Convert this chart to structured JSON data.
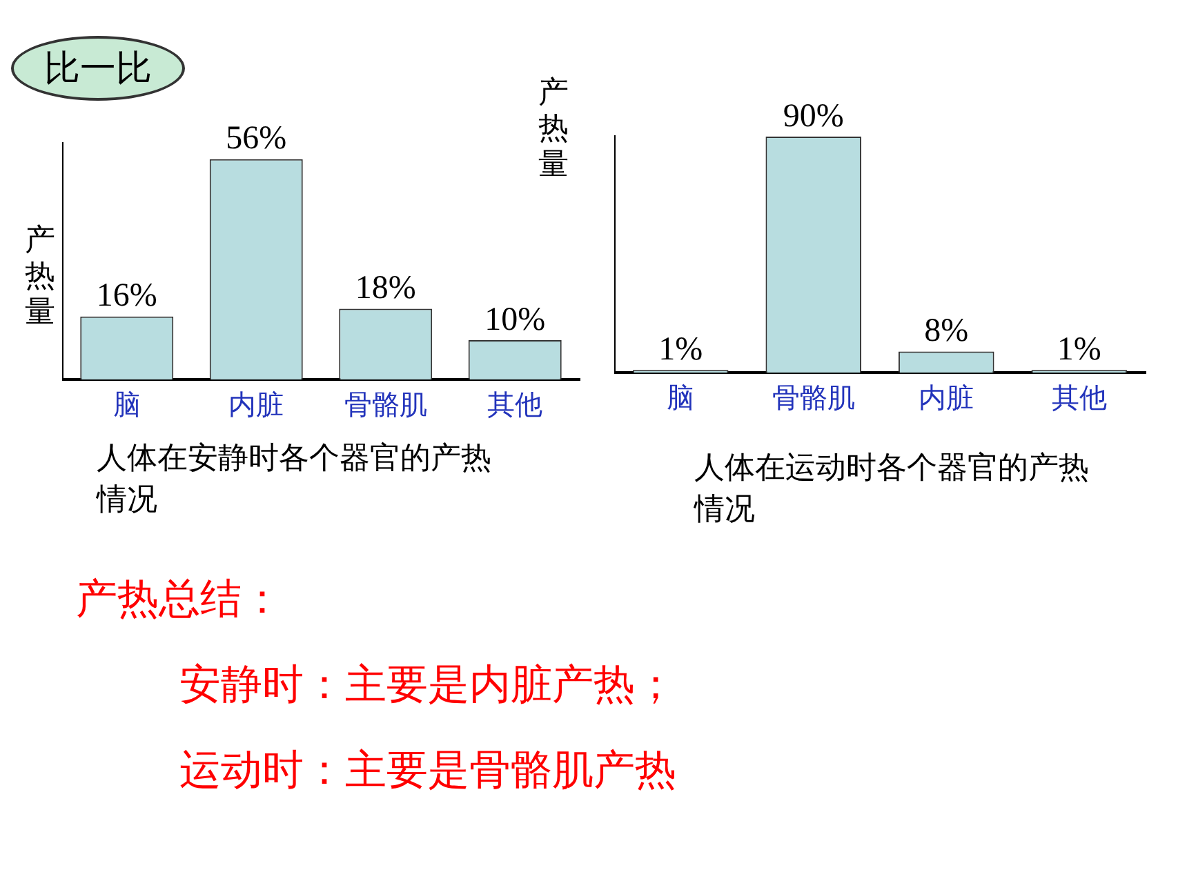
{
  "chart_data": [
    {
      "type": "bar",
      "title": "人体在安静时各个器官的产热情况",
      "ylabel": "产热量",
      "categories": [
        "脑",
        "内脏",
        "骨骼肌",
        "其他"
      ],
      "values": [
        16,
        56,
        18,
        10
      ],
      "value_labels": [
        "16%",
        "56%",
        "18%",
        "10%"
      ],
      "color": "#b8dde0",
      "grid": false,
      "legend": false,
      "annotations": [
        "比一比"
      ]
    },
    {
      "type": "bar",
      "title": "人体在运动时各个器官的产热情况",
      "ylabel": "产热量",
      "categories": [
        "脑",
        "骨骼肌",
        "内脏",
        "其他"
      ],
      "values": [
        1,
        90,
        8,
        1
      ],
      "value_labels": [
        "1%",
        "90%",
        "8%",
        "1%"
      ],
      "color": "#b8dde0",
      "grid": false,
      "legend": false
    },
    {
      "type": "other",
      "title": "产热总结：",
      "annotations": [
        "安静时：主要是内脏产热；",
        "运动时：主要是骨骼肌产热"
      ]
    }
  ]
}
